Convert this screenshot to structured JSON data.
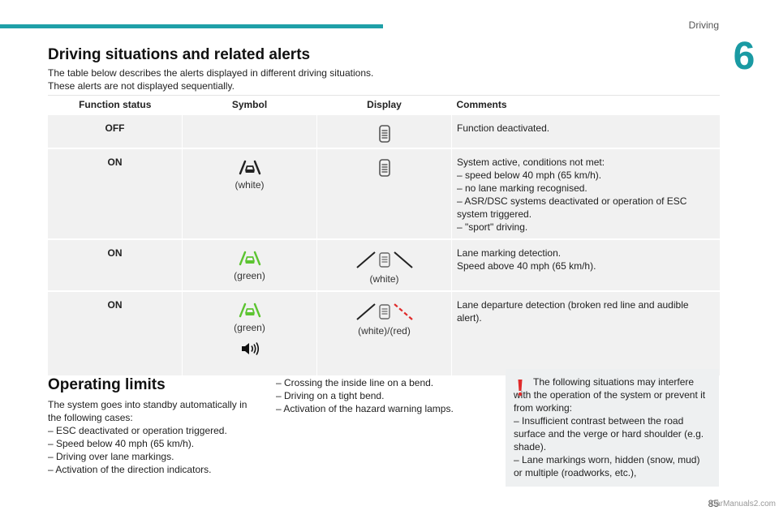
{
  "header": {
    "section": "Driving",
    "chapter": "6"
  },
  "title": "Driving situations and related alerts",
  "intro": [
    "The table below describes the alerts displayed in different driving situations.",
    "These alerts are not displayed sequentially."
  ],
  "table": {
    "headers": [
      "Function status",
      "Symbol",
      "Display",
      "Comments"
    ],
    "rows": [
      {
        "status": "OFF",
        "symbol_note": "",
        "display_note": "",
        "comments": [
          "Function deactivated."
        ]
      },
      {
        "status": "ON",
        "symbol_note": "(white)",
        "display_note": "",
        "comments": [
          "System active, conditions not met:",
          "–  speed below 40 mph (65 km/h).",
          "–  no lane marking recognised.",
          "–  ASR/DSC systems deactivated or operation of ESC system triggered.",
          "–  \"sport\" driving."
        ]
      },
      {
        "status": "ON",
        "symbol_note": "(green)",
        "display_note": "(white)",
        "comments": [
          "Lane marking detection.",
          "Speed above 40 mph (65 km/h)."
        ]
      },
      {
        "status": "ON",
        "symbol_note": "(green)",
        "display_note": "(white)/(red)",
        "comments": [
          "Lane departure detection (broken red line and audible alert)."
        ]
      }
    ]
  },
  "limits": {
    "title": "Operating limits",
    "col1": [
      "The system goes into standby automatically in the following cases:",
      "–  ESC deactivated or operation triggered.",
      "–  Speed below 40 mph (65 km/h).",
      "–  Driving over lane markings.",
      "–  Activation of the direction indicators."
    ],
    "col2": [
      "–  Crossing the inside line on a bend.",
      "–  Driving on a tight bend.",
      "–  Activation of the hazard warning lamps."
    ]
  },
  "warning": [
    "The following situations may interfere with the operation of the system or prevent it from working:",
    "–  Insufficient contrast between the road surface and the verge or hard shoulder (e.g. shade).",
    "–  Lane markings worn, hidden (snow, mud) or multiple (roadworks, etc.),"
  ],
  "footer": {
    "page": "85",
    "watermark": "CarManuals2.com"
  },
  "colors": {
    "accent": "#1fa0a8",
    "green": "#5cc431",
    "red": "#e02b2b"
  },
  "icons": [
    "lane-car-icon",
    "lane-display-icon",
    "road-lines-icon",
    "speaker-icon",
    "warning-exclamation-icon"
  ]
}
